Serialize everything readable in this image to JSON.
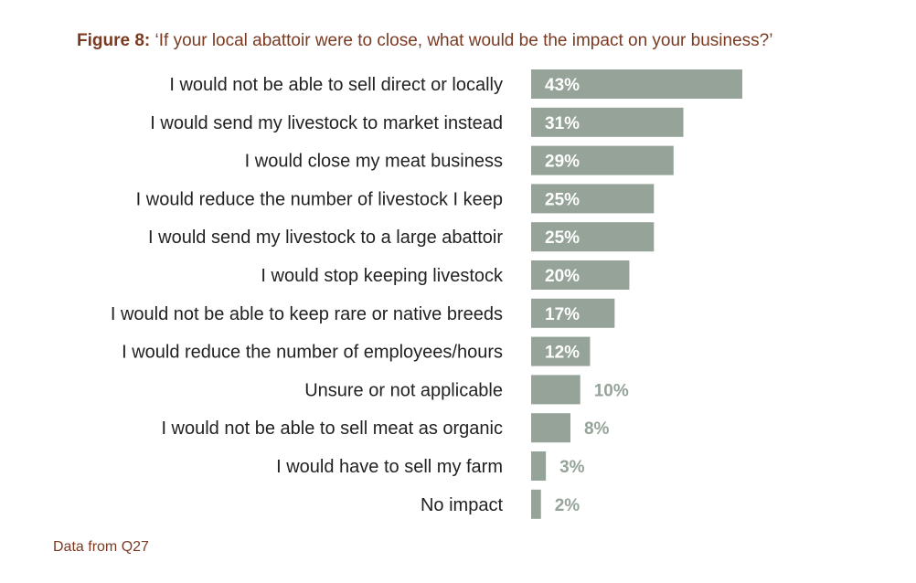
{
  "figure": {
    "label": "Figure 8:",
    "title": "‘If your local abattoir were to close, what would be the impact on your business?’",
    "source": "Data from Q27"
  },
  "colors": {
    "bar": "#95a398",
    "label_inside": "#ffffff",
    "label_outside": "#95a398",
    "title": "#7a3a22",
    "category_text": "#222222"
  },
  "chart_data": {
    "type": "bar",
    "orientation": "horizontal",
    "unit": "%",
    "categories": [
      "I would not be able to sell direct or locally",
      "I would send my livestock to market instead",
      "I would close my meat business",
      "I would reduce the number of livestock I keep",
      "I would send my livestock to a large abattoir",
      "I would stop keeping livestock",
      "I would not be able to keep rare or native breeds",
      "I would reduce the number of employees/hours",
      "Unsure or not applicable",
      "I would not be able to sell meat as organic",
      "I would have to sell my farm",
      "No impact"
    ],
    "values": [
      43,
      31,
      29,
      25,
      25,
      20,
      17,
      12,
      10,
      8,
      3,
      2
    ],
    "labels": [
      "43%",
      "31%",
      "29%",
      "25%",
      "25%",
      "20%",
      "17%",
      "12%",
      "10%",
      "8%",
      "3%",
      "2%"
    ],
    "xlim": [
      0,
      43
    ],
    "grid": false,
    "legend": "none"
  }
}
